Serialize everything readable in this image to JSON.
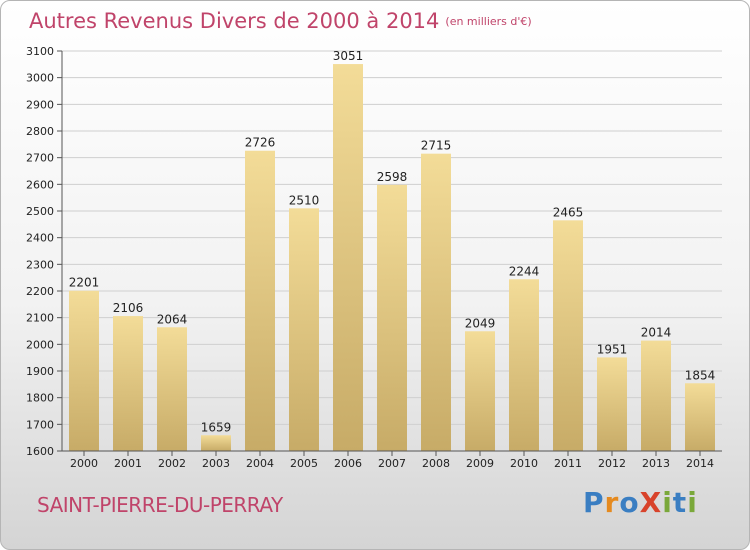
{
  "title": "Autres Revenus Divers de 2000 à 2014",
  "title_unit": "(en milliers d'€)",
  "town": "SAINT-PIERRE-DU-PERRAY",
  "logo": {
    "text": "ProXiti",
    "letters": [
      "P",
      "r",
      "o",
      "X",
      "i",
      "t",
      "i"
    ],
    "colors": [
      "#3a7ec2",
      "#e58a1f",
      "#3a7ec2",
      "#d8432b",
      "#7aa83a",
      "#3a7ec2",
      "#7aa83a"
    ]
  },
  "colors": {
    "accent": "#c0446a",
    "bar_top": "#f3dc98",
    "bar_bottom": "#c7ab67"
  },
  "chart_data": {
    "type": "bar",
    "title": "Autres Revenus Divers de 2000 à 2014",
    "categories": [
      "2000",
      "2001",
      "2002",
      "2003",
      "2004",
      "2005",
      "2006",
      "2007",
      "2008",
      "2009",
      "2010",
      "2011",
      "2012",
      "2013",
      "2014"
    ],
    "values": [
      2201,
      2106,
      2064,
      1659,
      2726,
      2510,
      3051,
      2598,
      2715,
      2049,
      2244,
      2465,
      1951,
      2014,
      1854
    ],
    "ylim": [
      1600,
      3100
    ],
    "yticks": [
      1600,
      1700,
      1800,
      1900,
      2000,
      2100,
      2200,
      2300,
      2400,
      2500,
      2600,
      2700,
      2800,
      2900,
      3000,
      3100
    ],
    "grid": true,
    "xlabel": "",
    "ylabel": ""
  }
}
